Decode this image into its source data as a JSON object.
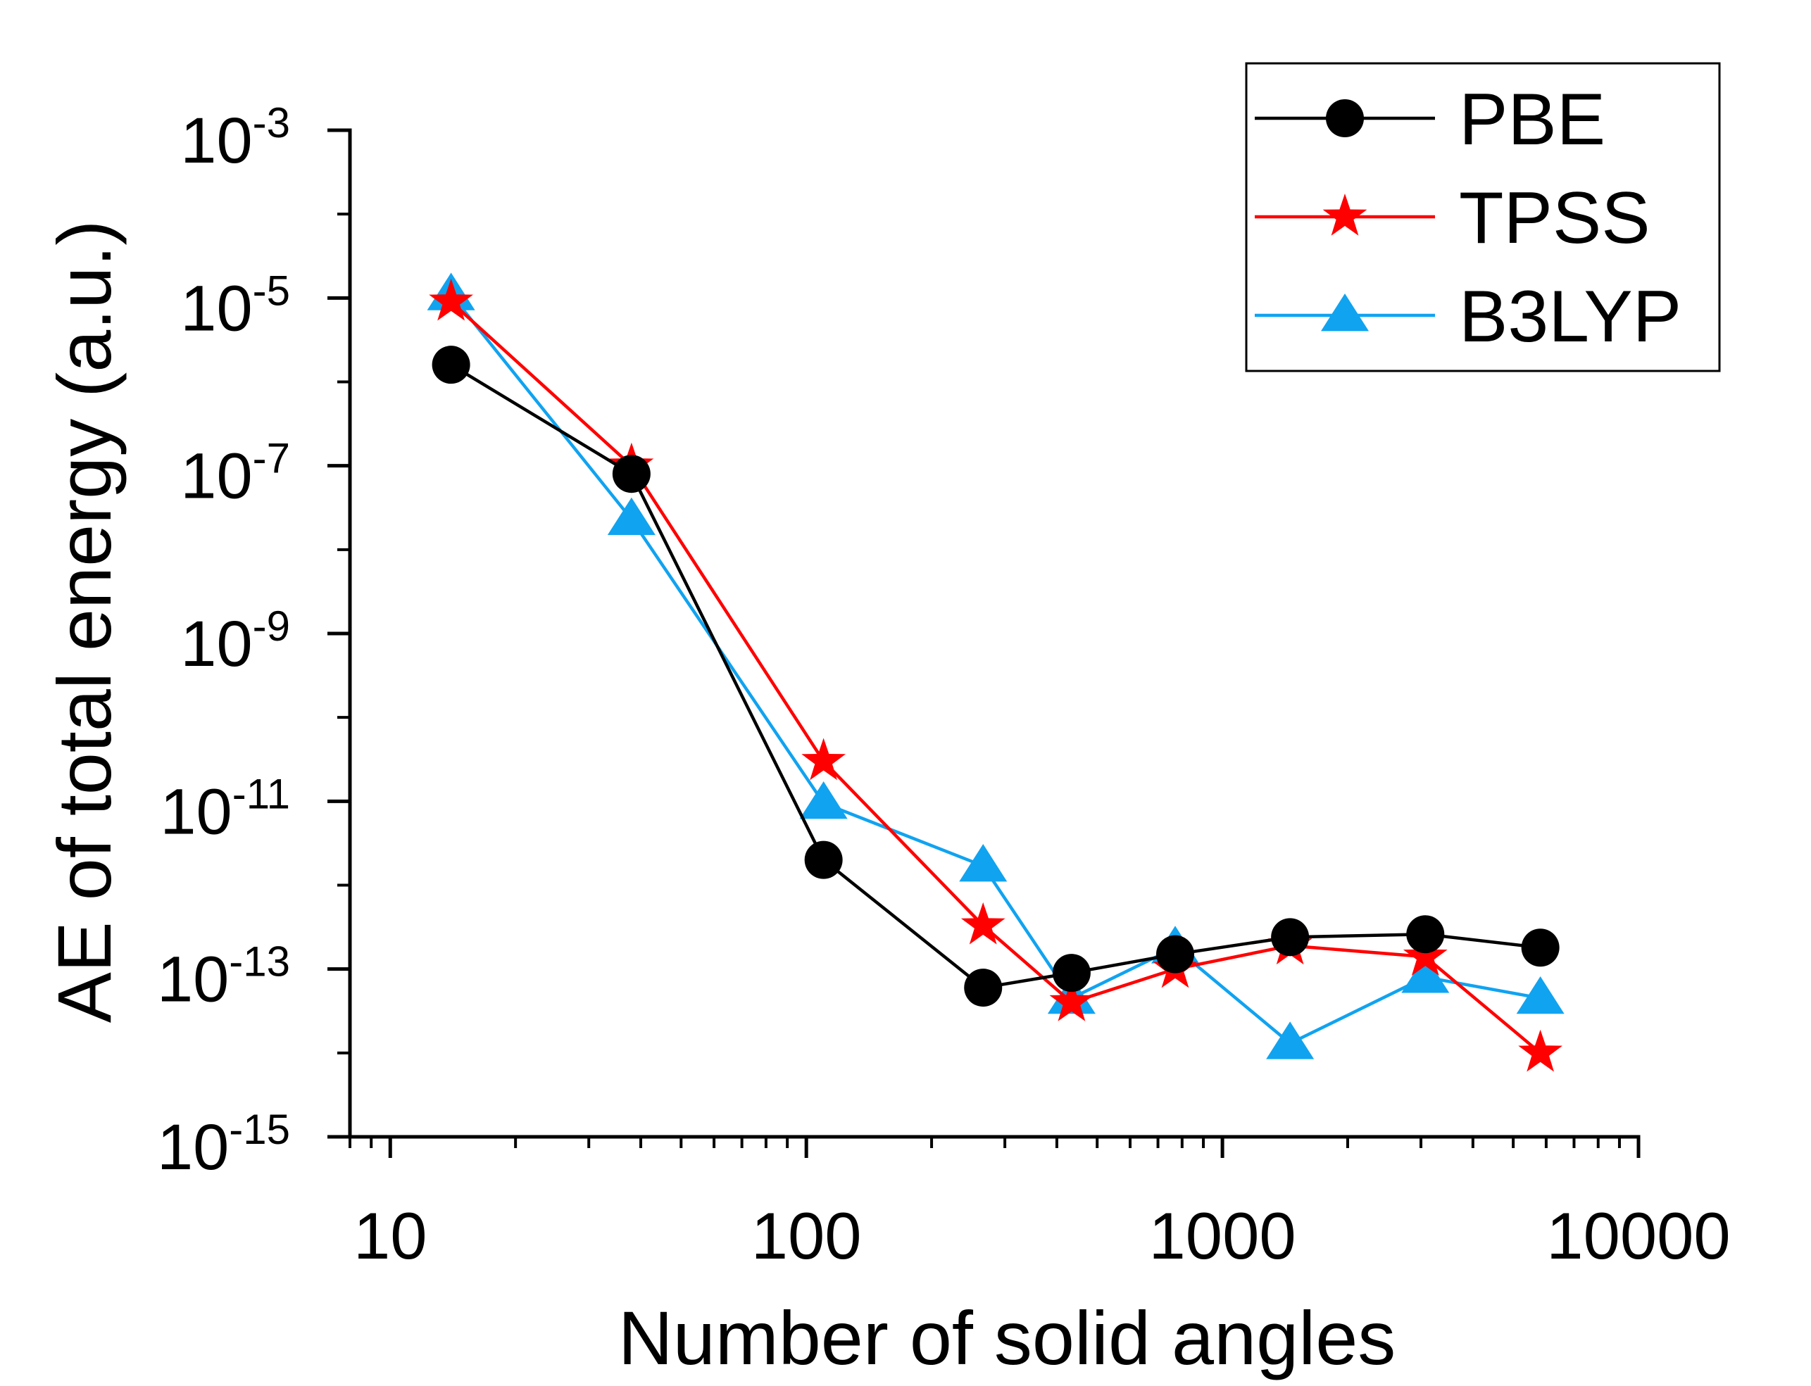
{
  "chart_data": {
    "type": "line",
    "title": "",
    "xlabel": "Number of solid angles",
    "ylabel": "AE of total energy (a.u.)",
    "x_scale": "log",
    "y_scale": "log",
    "xlim": [
      8,
      10000
    ],
    "ylim": [
      1e-15,
      0.001
    ],
    "x_ticks": [
      {
        "value": 10,
        "label": "10"
      },
      {
        "value": 100,
        "label": "100"
      },
      {
        "value": 1000,
        "label": "1000"
      },
      {
        "value": 10000,
        "label": "10000"
      }
    ],
    "y_ticks": [
      {
        "value": 0.001,
        "base": "10",
        "exp": "-3"
      },
      {
        "value": 1e-05,
        "base": "10",
        "exp": "-5"
      },
      {
        "value": 1e-07,
        "base": "10",
        "exp": "-7"
      },
      {
        "value": 1e-09,
        "base": "10",
        "exp": "-9"
      },
      {
        "value": 1e-11,
        "base": "10",
        "exp": "-11"
      },
      {
        "value": 1e-13,
        "base": "10",
        "exp": "-13"
      },
      {
        "value": 1e-15,
        "base": "10",
        "exp": "-15"
      }
    ],
    "grid": false,
    "legend_position": "top-right",
    "x": [
      14,
      38,
      110,
      266,
      434,
      770,
      1454,
      3074,
      5810
    ],
    "series": [
      {
        "name": "PBE",
        "color": "#000000",
        "marker": "circle",
        "values": [
          1.6e-06,
          8e-08,
          2e-12,
          6e-14,
          9e-14,
          1.5e-13,
          2.4e-13,
          2.6e-13,
          1.8e-13
        ]
      },
      {
        "name": "TPSS",
        "color": "#ff0000",
        "marker": "star",
        "values": [
          9e-06,
          1e-07,
          3e-11,
          3.3e-13,
          4e-14,
          1e-13,
          1.9e-13,
          1.4e-13,
          1e-14
        ]
      },
      {
        "name": "B3LYP",
        "color": "#10a3f0",
        "marker": "triangle",
        "values": [
          1.1e-05,
          2.3e-08,
          9.5e-12,
          1.7e-12,
          4.5e-14,
          1.8e-13,
          1.3e-14,
          8e-14,
          4.5e-14
        ]
      }
    ]
  }
}
